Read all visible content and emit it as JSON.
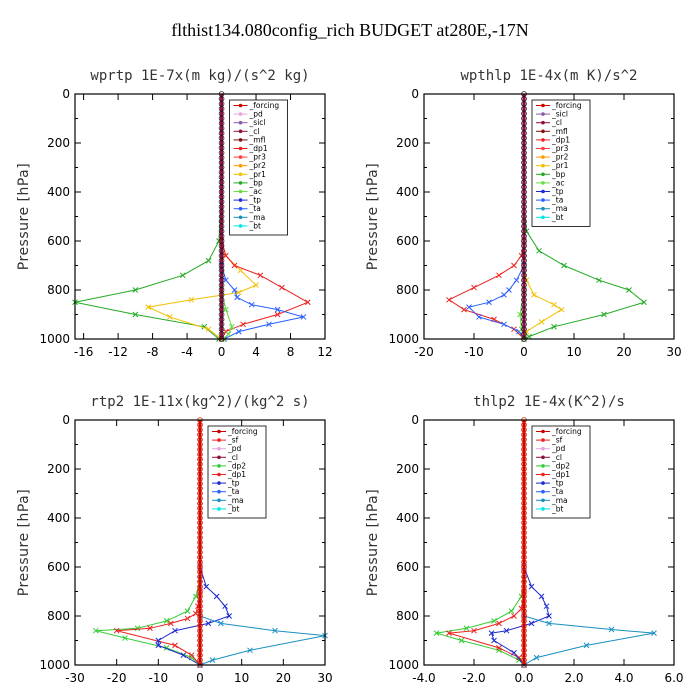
{
  "figure_title": "flthist134.080config_rich  BUDGET at280E,-17N",
  "colors": {
    "_forcing": "#cc0000",
    "_pd": "#e8a4e0",
    "_sicl": "#8a5aa8",
    "_cl": "#8a1040",
    "_mfl": "#801010",
    "_dp1": "#ee2020",
    "_pr3": "#ff4040",
    "_pr2": "#ff9900",
    "_pr1": "#f0c000",
    "_bp": "#22aa22",
    "_ac": "#66dd44",
    "_tp": "#1e2ad0",
    "_ta": "#2a60ff",
    "_ma": "#1a8fc0",
    "_bt": "#00e5e5",
    "_sf": "#ee2020",
    "_dp2": "#33cc33"
  },
  "chart_data": [
    {
      "type": "line",
      "title": "wprtp   1E-7x(m kg)/(s^2 kg)",
      "ylabel": "Pressure [hPa]",
      "xlim": [
        -17,
        12
      ],
      "ylim": [
        0,
        1000
      ],
      "y_inverted": true,
      "xticks": [
        -16,
        -12,
        -8,
        -4,
        0,
        4,
        8,
        12
      ],
      "xtick_labels": [
        "-16",
        "-12",
        "-8",
        "-4",
        "0",
        "4",
        "8",
        "12"
      ],
      "yticks": [
        0,
        200,
        400,
        600,
        800,
        1000
      ],
      "legend": [
        "_forcing",
        "_pd",
        "_sicl",
        "_cl",
        "_mfl",
        "_dp1",
        "_pr3",
        "_pr2",
        "_pr1",
        "_bp",
        "_ac",
        "_tp",
        "_ta",
        "_ma",
        "_bt"
      ],
      "series": [
        {
          "key": "_bp",
          "x": [
            0,
            0,
            -0.3,
            -1.5,
            -4.5,
            -10,
            -17,
            -10,
            -2,
            -0.3
          ],
          "y": [
            0,
            400,
            600,
            680,
            740,
            800,
            850,
            900,
            950,
            1000
          ]
        },
        {
          "key": "_pr1",
          "x": [
            0,
            0,
            0.5,
            2.2,
            4.0,
            2.0,
            -3.5,
            -8.5,
            -6.0,
            -1.5,
            0
          ],
          "y": [
            0,
            600,
            660,
            720,
            780,
            810,
            840,
            870,
            910,
            960,
            1000
          ]
        },
        {
          "key": "_dp1",
          "x": [
            0,
            0,
            0.5,
            1.5,
            4.5,
            7.0,
            10.0,
            6.5,
            2.5,
            0.5,
            0
          ],
          "y": [
            0,
            600,
            660,
            700,
            740,
            790,
            850,
            900,
            940,
            970,
            1000
          ]
        },
        {
          "key": "_ta",
          "x": [
            0,
            0,
            0.5,
            1.5,
            1.8,
            3.5,
            6.5,
            9.5,
            5.5,
            2.0,
            0.3
          ],
          "y": [
            0,
            700,
            760,
            800,
            830,
            860,
            880,
            910,
            940,
            970,
            1000
          ]
        },
        {
          "key": "_ac",
          "x": [
            0,
            0,
            0.5,
            1.2,
            0.8,
            0.2
          ],
          "y": [
            0,
            800,
            880,
            950,
            980,
            1000
          ]
        }
      ]
    },
    {
      "type": "line",
      "title": "wpthlp   1E-4x(m K)/s^2",
      "ylabel": "Pressure [hPa]",
      "xlim": [
        -20,
        30
      ],
      "ylim": [
        0,
        1000
      ],
      "y_inverted": true,
      "xticks": [
        -20,
        -10,
        0,
        10,
        20,
        30
      ],
      "xtick_labels": [
        "-20",
        "-10",
        "0",
        "10",
        "20",
        "30"
      ],
      "yticks": [
        0,
        200,
        400,
        600,
        800,
        1000
      ],
      "legend": [
        "_forcing",
        "_sicl",
        "_cl",
        "_mfl",
        "_dp1",
        "_pr3",
        "_pr2",
        "_pr1",
        "_bp",
        "_ac",
        "_tp",
        "_ta",
        "_ma",
        "_bt"
      ],
      "series": [
        {
          "key": "_bp",
          "x": [
            0,
            0,
            0.5,
            3,
            8,
            15,
            21,
            24,
            16,
            6,
            1,
            0
          ],
          "y": [
            0,
            450,
            560,
            640,
            700,
            760,
            800,
            850,
            900,
            950,
            990,
            1000
          ]
        },
        {
          "key": "_dp1",
          "x": [
            0,
            0,
            -0.5,
            -2,
            -5,
            -10,
            -15,
            -12,
            -6,
            -2,
            0
          ],
          "y": [
            0,
            600,
            660,
            700,
            740,
            790,
            840,
            880,
            920,
            960,
            1000
          ]
        },
        {
          "key": "_pr1",
          "x": [
            0,
            0,
            0.5,
            2.0,
            6.0,
            7.5,
            3.5,
            0.5,
            0
          ],
          "y": [
            0,
            700,
            760,
            820,
            860,
            880,
            930,
            970,
            1000
          ]
        },
        {
          "key": "_ta",
          "x": [
            0,
            0,
            -1.5,
            -3.0,
            -4.0,
            -7,
            -11,
            -9,
            -4,
            -1,
            0
          ],
          "y": [
            0,
            700,
            760,
            800,
            820,
            850,
            870,
            910,
            940,
            970,
            1000
          ]
        },
        {
          "key": "_ac",
          "x": [
            0,
            0,
            -0.8,
            -0.5,
            0
          ],
          "y": [
            0,
            800,
            900,
            960,
            1000
          ]
        }
      ]
    },
    {
      "type": "line",
      "title": "rtp2   1E-11x(kg^2)/(kg^2 s)",
      "ylabel": "Pressure [hPa]",
      "xlim": [
        -30,
        30
      ],
      "ylim": [
        0,
        1000
      ],
      "y_inverted": true,
      "xticks": [
        -30,
        -20,
        -10,
        0,
        10,
        20,
        30
      ],
      "xtick_labels": [
        "-30",
        "-20",
        "-10",
        "0",
        "10",
        "20",
        "30"
      ],
      "yticks": [
        0,
        200,
        400,
        600,
        800,
        1000
      ],
      "legend": [
        "_forcing",
        "_sf",
        "_pd",
        "_cl",
        "_dp2",
        "_dp1",
        "_tp",
        "_ta",
        "_ma",
        "_bt"
      ],
      "series": [
        {
          "key": "_dp2",
          "x": [
            0,
            0,
            -1,
            -3,
            -8,
            -15,
            -25,
            -18,
            -8,
            -2,
            0
          ],
          "y": [
            0,
            650,
            720,
            780,
            820,
            850,
            860,
            890,
            930,
            970,
            1000
          ]
        },
        {
          "key": "_dp1",
          "x": [
            0,
            0,
            -0.5,
            -1,
            -3,
            -7,
            -12,
            -20,
            -6,
            -2,
            0
          ],
          "y": [
            0,
            700,
            760,
            790,
            810,
            830,
            850,
            860,
            920,
            960,
            1000
          ]
        },
        {
          "key": "_tp",
          "x": [
            0,
            0,
            1.5,
            4,
            6,
            7,
            2,
            -6,
            -10,
            -10,
            -4,
            0
          ],
          "y": [
            0,
            600,
            680,
            720,
            760,
            800,
            830,
            860,
            900,
            920,
            960,
            1000
          ]
        },
        {
          "key": "_ma",
          "x": [
            0,
            0,
            5,
            18,
            30,
            12,
            3,
            0
          ],
          "y": [
            0,
            800,
            830,
            860,
            880,
            940,
            980,
            1000
          ]
        }
      ]
    },
    {
      "type": "line",
      "title": "thlp2   1E-4x(K^2)/s",
      "ylabel": "Pressure [hPa]",
      "xlim": [
        -4,
        6
      ],
      "ylim": [
        0,
        1000
      ],
      "y_inverted": true,
      "xticks": [
        -4,
        -2,
        0,
        2,
        4,
        6
      ],
      "xtick_labels": [
        "-4.0",
        "-2.0",
        "0.0",
        "2.0",
        "4.0",
        "6.0"
      ],
      "yticks": [
        0,
        200,
        400,
        600,
        800,
        1000
      ],
      "legend": [
        "_forcing",
        "_sf",
        "_pd",
        "_cl",
        "_dp2",
        "_dp1",
        "_tp",
        "_ta",
        "_ma",
        "_bt"
      ],
      "series": [
        {
          "key": "_dp2",
          "x": [
            0,
            0,
            -0.1,
            -0.5,
            -1.2,
            -2.3,
            -3.5,
            -2.5,
            -1,
            -0.2,
            0
          ],
          "y": [
            0,
            650,
            720,
            780,
            820,
            850,
            870,
            900,
            940,
            980,
            1000
          ]
        },
        {
          "key": "_dp1",
          "x": [
            0,
            0,
            -0.1,
            -0.4,
            -1.0,
            -2.0,
            -3.0,
            -1.0,
            -0.2,
            0
          ],
          "y": [
            0,
            700,
            770,
            800,
            830,
            860,
            870,
            930,
            970,
            1000
          ]
        },
        {
          "key": "_tp",
          "x": [
            0,
            0,
            0.3,
            0.7,
            0.9,
            1.0,
            0.3,
            -0.7,
            -1.3,
            -1.2,
            -0.4,
            0
          ],
          "y": [
            0,
            600,
            680,
            720,
            760,
            800,
            830,
            860,
            870,
            900,
            950,
            1000
          ]
        },
        {
          "key": "_ma",
          "x": [
            0,
            0,
            1.0,
            3.5,
            5.2,
            2.5,
            0.5,
            0
          ],
          "y": [
            0,
            800,
            830,
            855,
            870,
            920,
            970,
            1000
          ]
        }
      ]
    }
  ]
}
